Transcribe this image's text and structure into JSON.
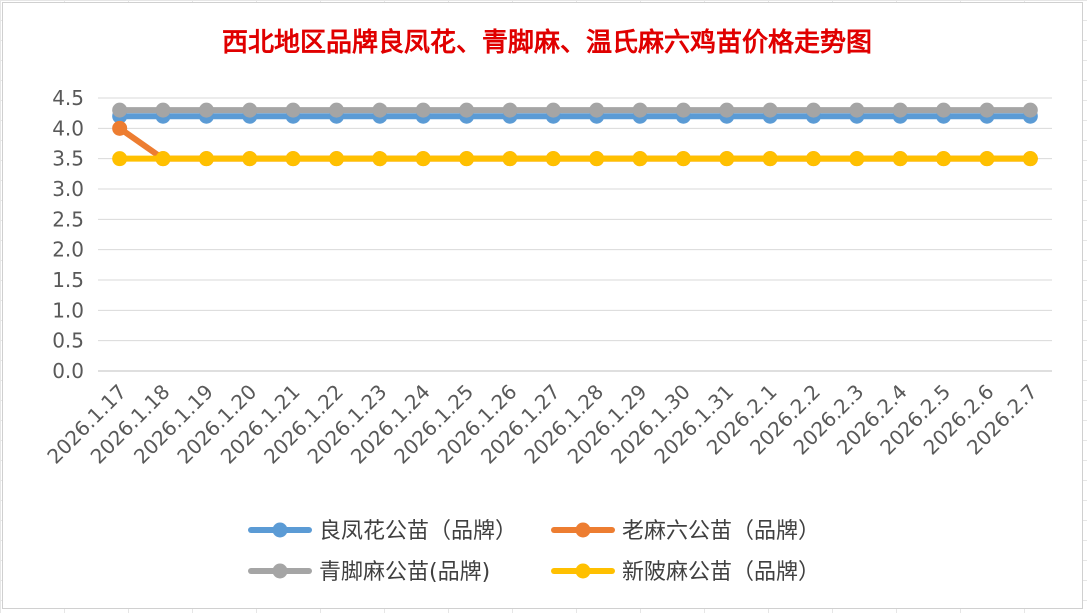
{
  "chart_data": {
    "type": "line",
    "title": "西北地区品牌良凤花、青脚麻、温氏麻六鸡苗价格走势图",
    "xlabel": "",
    "ylabel": "",
    "ylim": [
      0,
      4.5
    ],
    "y_ticks": [
      "0.0",
      "0.5",
      "1.0",
      "1.5",
      "2.0",
      "2.5",
      "3.0",
      "3.5",
      "4.0",
      "4.5"
    ],
    "grid": true,
    "legend_position": "bottom",
    "categories": [
      "2026.1.17",
      "2026.1.18",
      "2026.1.19",
      "2026.1.20",
      "2026.1.21",
      "2026.1.22",
      "2026.1.23",
      "2026.1.24",
      "2026.1.25",
      "2026.1.26",
      "2026.1.27",
      "2026.1.28",
      "2026.1.29",
      "2026.1.30",
      "2026.1.31",
      "2026.2.1",
      "2026.2.2",
      "2026.2.3",
      "2026.2.4",
      "2026.2.5",
      "2026.2.6",
      "2026.2.7"
    ],
    "series": [
      {
        "name": "良凤花公苗（品牌）",
        "color": "#5b9bd5",
        "values": [
          4.2,
          4.2,
          4.2,
          4.2,
          4.2,
          4.2,
          4.2,
          4.2,
          4.2,
          4.2,
          4.2,
          4.2,
          4.2,
          4.2,
          4.2,
          4.2,
          4.2,
          4.2,
          4.2,
          4.2,
          4.2,
          4.2
        ]
      },
      {
        "name": "老麻六公苗（品牌）",
        "color": "#ed7d31",
        "values": [
          4.0,
          3.5,
          3.5,
          3.5,
          3.5,
          3.5,
          3.5,
          3.5,
          3.5,
          3.5,
          3.5,
          3.5,
          3.5,
          3.5,
          3.5,
          3.5,
          3.5,
          3.5,
          3.5,
          3.5,
          3.5,
          3.5
        ]
      },
      {
        "name": "青脚麻公苗(品牌)",
        "color": "#a5a5a5",
        "values": [
          4.3,
          4.3,
          4.3,
          4.3,
          4.3,
          4.3,
          4.3,
          4.3,
          4.3,
          4.3,
          4.3,
          4.3,
          4.3,
          4.3,
          4.3,
          4.3,
          4.3,
          4.3,
          4.3,
          4.3,
          4.3,
          4.3
        ]
      },
      {
        "name": "新陂麻公苗（品牌）",
        "color": "#ffc000",
        "values": [
          3.5,
          3.5,
          3.5,
          3.5,
          3.5,
          3.5,
          3.5,
          3.5,
          3.5,
          3.5,
          3.5,
          3.5,
          3.5,
          3.5,
          3.5,
          3.5,
          3.5,
          3.5,
          3.5,
          3.5,
          3.5,
          3.5
        ]
      }
    ]
  }
}
